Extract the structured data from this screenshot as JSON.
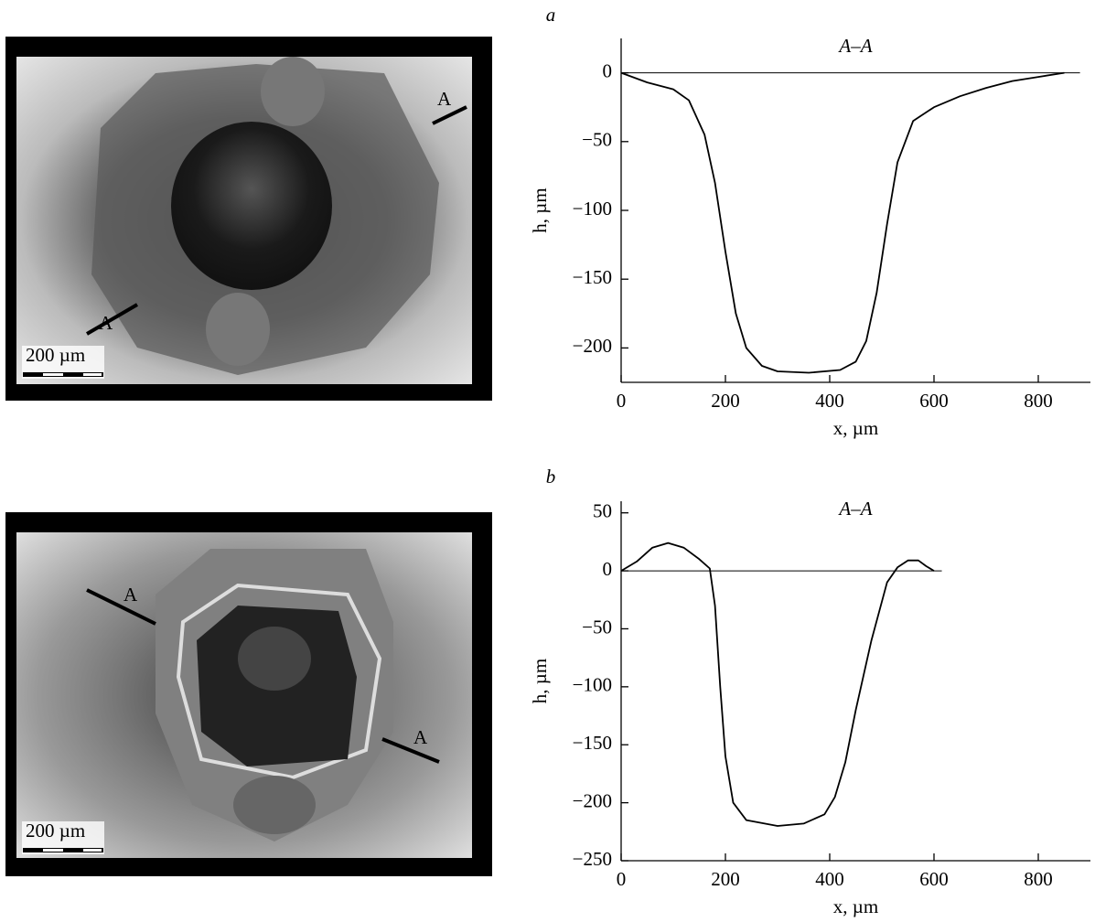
{
  "chart_data": [
    {
      "type": "line",
      "panel": "a",
      "title": "A–A",
      "xlabel": "x, µm",
      "ylabel": "h, µm",
      "x": [
        0,
        50,
        100,
        130,
        160,
        180,
        200,
        220,
        240,
        270,
        300,
        360,
        420,
        450,
        470,
        490,
        510,
        530,
        560,
        600,
        650,
        700,
        750,
        800,
        850
      ],
      "values": [
        0,
        -7,
        -12,
        -20,
        -45,
        -80,
        -130,
        -175,
        -200,
        -213,
        -217,
        -218,
        -216,
        -210,
        -195,
        -160,
        -110,
        -65,
        -35,
        -25,
        -17,
        -11,
        -6,
        -3,
        0
      ],
      "color": "#000000",
      "reference_line": {
        "y": 0,
        "x": [
          0,
          880
        ]
      },
      "xlim": [
        0,
        900
      ],
      "ylim": [
        -225,
        25
      ],
      "xticks": [
        0,
        200,
        400,
        600,
        800
      ],
      "yticks": [
        0,
        {
          "value": -50,
          "label": "−50"
        },
        {
          "value": -100,
          "label": "−100"
        },
        {
          "value": -150,
          "label": "−150"
        },
        {
          "value": -200,
          "label": "−200"
        }
      ]
    },
    {
      "type": "line",
      "panel": "b",
      "title": "A–A",
      "xlabel": "x, µm",
      "ylabel": "h, µm",
      "x": [
        0,
        30,
        60,
        90,
        120,
        150,
        170,
        180,
        190,
        200,
        215,
        240,
        300,
        350,
        390,
        410,
        430,
        450,
        480,
        510,
        530,
        550,
        570,
        585,
        600
      ],
      "values": [
        0,
        8,
        20,
        24,
        20,
        10,
        2,
        -30,
        -100,
        -160,
        -200,
        -215,
        -220,
        -218,
        -210,
        -195,
        -165,
        -120,
        -60,
        -10,
        3,
        9,
        9,
        4,
        0
      ],
      "color": "#000000",
      "reference_line": {
        "y": 0,
        "x": [
          0,
          615
        ]
      },
      "xlim": [
        0,
        900
      ],
      "ylim": [
        -250,
        60
      ],
      "xticks": [
        0,
        200,
        400,
        600,
        800
      ],
      "yticks": [
        50,
        0,
        {
          "value": -50,
          "label": "−50"
        },
        {
          "value": -100,
          "label": "−100"
        },
        {
          "value": -150,
          "label": "−150"
        },
        {
          "value": -200,
          "label": "−200"
        },
        {
          "value": -250,
          "label": "−250"
        }
      ]
    }
  ],
  "micrographs": [
    {
      "scale_bar": "200 µm",
      "section_marks": [
        "A",
        "A"
      ]
    },
    {
      "scale_bar": "200 µm",
      "section_marks": [
        "A",
        "A"
      ]
    }
  ]
}
